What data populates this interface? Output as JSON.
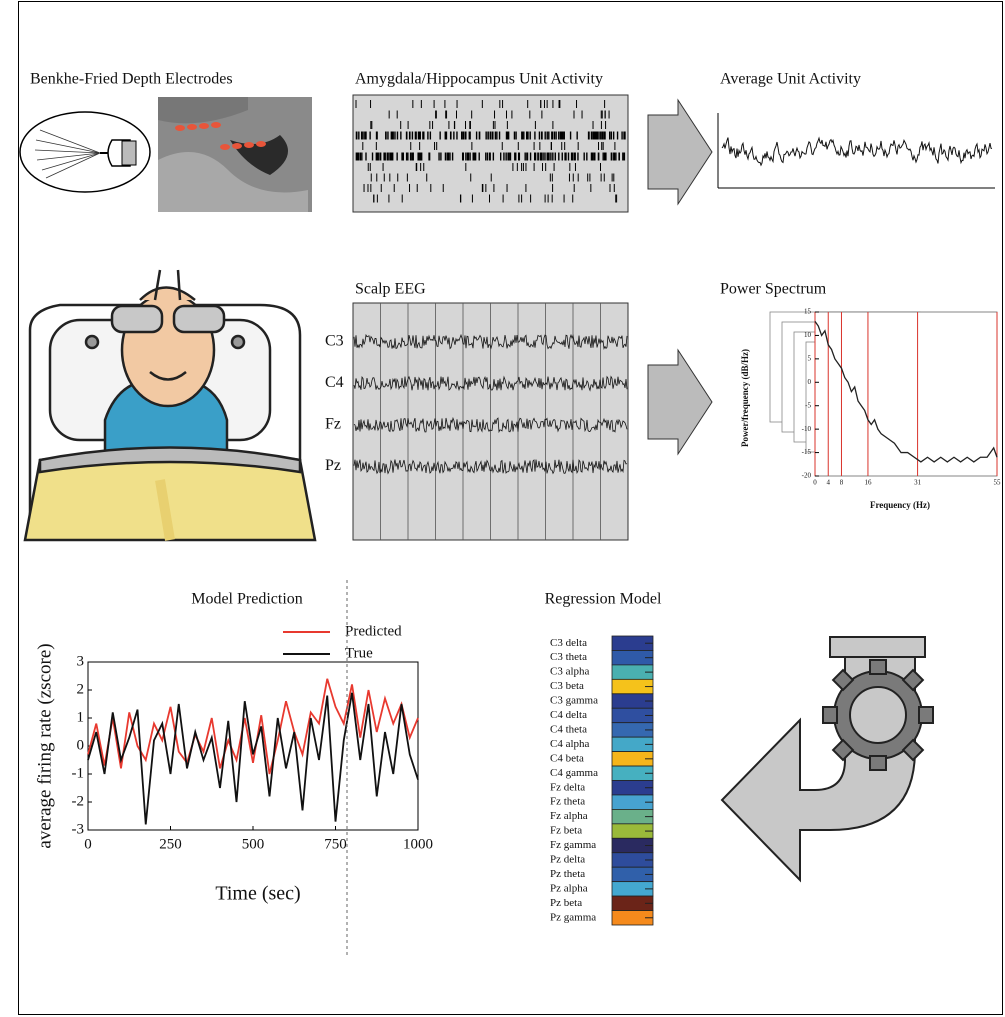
{
  "panels": {
    "electrodes": {
      "title": "Benkhe-Fried Depth Electrodes"
    },
    "unit_activity": {
      "title": "Amygdala/Hippocampus Unit Activity"
    },
    "average_unit_activity": {
      "title": "Average Unit Activity"
    },
    "scalp_eeg": {
      "title": "Scalp EEG",
      "channels": [
        "C3",
        "C4",
        "Fz",
        "Pz"
      ]
    },
    "power_spectrum": {
      "title": "Power Spectrum",
      "xlabel": "Frequency (Hz)",
      "ylabel": "Power/frequency (dB/Hz)",
      "x": [
        0,
        1,
        2,
        3,
        4,
        5,
        6,
        7,
        8,
        9,
        10,
        11,
        12,
        13,
        14,
        15,
        16,
        17,
        18,
        19,
        20,
        22,
        24,
        26,
        28,
        30,
        32,
        34,
        36,
        38,
        40,
        42,
        44,
        46,
        48,
        50,
        52,
        54,
        55
      ],
      "values": [
        13,
        12,
        10,
        11,
        8,
        7,
        5,
        4,
        3,
        1,
        0,
        -2,
        -1,
        -4,
        -5,
        -6,
        -8,
        -9,
        -8,
        -10,
        -11,
        -12,
        -13,
        -15,
        -15,
        -16,
        -17,
        -16,
        -17,
        -16,
        -17,
        -16,
        -17,
        -16,
        -17,
        -16,
        -16,
        -14,
        -16
      ],
      "color": "#222222",
      "marker_color": "#d9332b",
      "xlim": [
        0,
        55
      ],
      "ylim": [
        -20,
        15
      ],
      "xticks": [
        0,
        4,
        8,
        16,
        31,
        55
      ],
      "yticks": [
        15,
        10,
        5,
        0,
        -5,
        -10,
        -15,
        -20
      ]
    },
    "model_prediction": {
      "title": "Model Prediction",
      "xlabel": "Time (sec)",
      "ylabel": "average firing rate (zscore)",
      "x": [
        0,
        25,
        50,
        75,
        100,
        125,
        150,
        175,
        200,
        225,
        250,
        275,
        300,
        325,
        350,
        375,
        400,
        425,
        450,
        475,
        500,
        525,
        550,
        575,
        600,
        625,
        650,
        675,
        700,
        725,
        750,
        775,
        800,
        825,
        850,
        875,
        900,
        925,
        950,
        975,
        1000
      ],
      "series": [
        {
          "name": "Predicted",
          "color": "#e8392f",
          "values": [
            -0.3,
            0.8,
            -0.7,
            1,
            -0.8,
            1.2,
            0,
            -0.5,
            0.8,
            0.2,
            1.4,
            -0.2,
            -0.6,
            0.4,
            -0.2,
            1,
            -0.8,
            0.2,
            -0.5,
            1,
            -0.6,
            1.1,
            -1,
            0.2,
            1.6,
            0.5,
            -0.3,
            1.2,
            0.8,
            2.4,
            1.4,
            0.8,
            2.2,
            0.3,
            2,
            0.5,
            1.7,
            0.8,
            1.5,
            0.3,
            1
          ]
        },
        {
          "name": "True",
          "color": "#111111",
          "values": [
            -0.5,
            0.5,
            -1,
            1.2,
            -0.5,
            0.3,
            1.3,
            -2.8,
            0.2,
            0.8,
            -1,
            1.5,
            -0.8,
            0.5,
            -0.5,
            0.3,
            -1.5,
            0.9,
            -2,
            1.6,
            -0.3,
            0.7,
            -1.8,
            1,
            -0.8,
            0.5,
            -2.3,
            1,
            -0.5,
            1.8,
            -2.7,
            0.2,
            1.9,
            -0.5,
            1.5,
            -1.8,
            0.5,
            -1,
            1.5,
            -0.3,
            -1.2
          ]
        }
      ],
      "xlim": [
        0,
        1000
      ],
      "ylim": [
        -3,
        3
      ],
      "xticks": [
        0,
        250,
        500,
        750,
        1000
      ],
      "yticks": [
        3,
        2,
        1,
        0,
        -1,
        -2,
        -3
      ]
    },
    "regression_model": {
      "title": "Regression Model",
      "rows": [
        {
          "label": "C3 delta",
          "color": "#2b3d8f"
        },
        {
          "label": "C3 theta",
          "color": "#2f5aa8"
        },
        {
          "label": "C3 alpha",
          "color": "#4ab0b0"
        },
        {
          "label": "C3 beta",
          "color": "#f5c21b"
        },
        {
          "label": "C3 gamma",
          "color": "#2b3d8f"
        },
        {
          "label": "C4 delta",
          "color": "#2f4fa0"
        },
        {
          "label": "C4 theta",
          "color": "#3568b0"
        },
        {
          "label": "C4 alpha",
          "color": "#44a8c8"
        },
        {
          "label": "C4 beta",
          "color": "#f5b51b"
        },
        {
          "label": "C4 gamma",
          "color": "#46b0c0"
        },
        {
          "label": "Fz delta",
          "color": "#2b3d8f"
        },
        {
          "label": "Fz theta",
          "color": "#47a3d0"
        },
        {
          "label": "Fz alpha",
          "color": "#6ab08a"
        },
        {
          "label": "Fz beta",
          "color": "#9aba3a"
        },
        {
          "label": "Fz gamma",
          "color": "#2a2a60"
        },
        {
          "label": "Pz delta",
          "color": "#2e4c9c"
        },
        {
          "label": "Pz theta",
          "color": "#3060aa"
        },
        {
          "label": "Pz alpha",
          "color": "#44a8d0"
        },
        {
          "label": "Pz beta",
          "color": "#6b2418"
        },
        {
          "label": "Pz gamma",
          "color": "#f58a1c"
        }
      ]
    }
  }
}
